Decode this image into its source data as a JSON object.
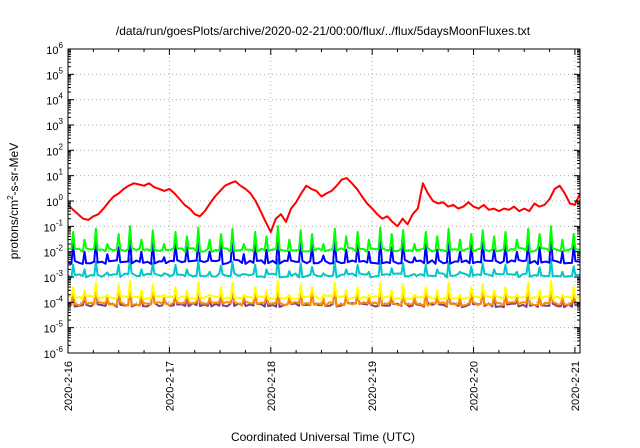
{
  "chart_data": {
    "type": "line",
    "title": "/data/run/goesPlots/archive/2020-02-21/00:00/flux/../flux/5daysMoonFluxes.txt",
    "xlabel": "Coordinated Universal Time (UTC)",
    "ylabel_parts": {
      "pre": "protons/cm",
      "sup": "2",
      "post": "-s-sr-MeV"
    },
    "yscale": "log",
    "ylim": [
      1e-06,
      1000000.0
    ],
    "y_ticks": [
      {
        "base": "10",
        "exp": "-6"
      },
      {
        "base": "10",
        "exp": "-5"
      },
      {
        "base": "10",
        "exp": "-4"
      },
      {
        "base": "10",
        "exp": "-3"
      },
      {
        "base": "10",
        "exp": "-2"
      },
      {
        "base": "10",
        "exp": "-1"
      },
      {
        "base": "10",
        "exp": "0"
      },
      {
        "base": "10",
        "exp": "1"
      },
      {
        "base": "10",
        "exp": "2"
      },
      {
        "base": "10",
        "exp": "3"
      },
      {
        "base": "10",
        "exp": "4"
      },
      {
        "base": "10",
        "exp": "5"
      },
      {
        "base": "10",
        "exp": "6"
      }
    ],
    "x_ticks": [
      "2020-2-16",
      "2020-2-17",
      "2020-2-18",
      "2020-2-19",
      "2020-2-20",
      "2020-2-21"
    ],
    "xlim_days": [
      0,
      5.05
    ],
    "grid": true,
    "series": [
      {
        "color": "#ff0000",
        "x": [
          0.0,
          0.05,
          0.1,
          0.15,
          0.2,
          0.25,
          0.3,
          0.35,
          0.4,
          0.45,
          0.5,
          0.55,
          0.6,
          0.65,
          0.7,
          0.75,
          0.8,
          0.85,
          0.9,
          0.95,
          1.0,
          1.05,
          1.1,
          1.15,
          1.2,
          1.25,
          1.3,
          1.35,
          1.4,
          1.45,
          1.5,
          1.55,
          1.6,
          1.65,
          1.7,
          1.75,
          1.8,
          1.85,
          1.9,
          1.95,
          2.0,
          2.05,
          2.1,
          2.15,
          2.2,
          2.25,
          2.3,
          2.35,
          2.4,
          2.45,
          2.5,
          2.55,
          2.6,
          2.65,
          2.7,
          2.75,
          2.8,
          2.85,
          2.9,
          2.95,
          3.0,
          3.05,
          3.1,
          3.15,
          3.2,
          3.25,
          3.3,
          3.35,
          3.4,
          3.45,
          3.5,
          3.55,
          3.6,
          3.65,
          3.7,
          3.75,
          3.8,
          3.85,
          3.9,
          3.95,
          4.0,
          4.05,
          4.1,
          4.15,
          4.2,
          4.25,
          4.3,
          4.35,
          4.4,
          4.45,
          4.5,
          4.55,
          4.6,
          4.65,
          4.7,
          4.75,
          4.8,
          4.85,
          4.9,
          4.95,
          5.0,
          5.05
        ],
        "values": [
          0.7,
          0.45,
          0.3,
          0.2,
          0.18,
          0.25,
          0.3,
          0.5,
          0.9,
          1.5,
          2.0,
          3.0,
          4.0,
          5.0,
          4.5,
          4.0,
          5.0,
          3.5,
          3.0,
          2.5,
          3.0,
          2.0,
          1.2,
          0.7,
          0.5,
          0.3,
          0.25,
          0.4,
          0.8,
          1.5,
          2.5,
          4.0,
          5.0,
          6.0,
          4.0,
          3.0,
          2.0,
          1.0,
          0.4,
          0.15,
          0.06,
          0.2,
          0.3,
          0.15,
          0.5,
          0.9,
          2.0,
          4.0,
          3.0,
          2.5,
          1.5,
          2.0,
          2.5,
          4.0,
          7.0,
          8.0,
          5.0,
          3.0,
          1.5,
          0.8,
          0.5,
          0.3,
          0.2,
          0.25,
          0.15,
          0.1,
          0.2,
          0.12,
          0.3,
          0.5,
          5.0,
          2.0,
          1.0,
          0.8,
          0.9,
          0.6,
          0.7,
          0.5,
          0.6,
          0.9,
          0.6,
          0.5,
          0.7,
          0.45,
          0.5,
          0.4,
          0.5,
          0.45,
          0.6,
          0.4,
          0.5,
          0.4,
          0.8,
          0.6,
          0.7,
          1.2,
          3.0,
          4.0,
          2.0,
          0.8,
          0.7,
          2.0
        ]
      },
      {
        "color": "#00ff00",
        "baseline": 0.012,
        "spikes": [
          0.06,
          0.03,
          0.08,
          0.02,
          0.05,
          0.1,
          0.03,
          0.07,
          0.02,
          0.06,
          0.04,
          0.09,
          0.03,
          0.05,
          0.08,
          0.02,
          0.06,
          0.04,
          0.1,
          0.03,
          0.07,
          0.05,
          0.02,
          0.08,
          0.04,
          0.06,
          0.03,
          0.09,
          0.05,
          0.07,
          0.02,
          0.06,
          0.04,
          0.08,
          0.03,
          0.05,
          0.07,
          0.04,
          0.06,
          0.03,
          0.08,
          0.05,
          0.1,
          0.03,
          0.05
        ]
      },
      {
        "color": "#0000ff",
        "baseline": 0.004,
        "spikes": [
          0.02,
          0.01,
          0.03,
          0.008,
          0.015,
          0.04,
          0.01,
          0.025,
          0.006,
          0.02,
          0.015,
          0.03,
          0.01,
          0.02,
          0.035,
          0.008,
          0.02,
          0.012,
          0.04,
          0.01,
          0.025,
          0.018,
          0.007,
          0.03,
          0.012,
          0.02,
          0.01,
          0.035,
          0.015,
          0.025,
          0.006,
          0.02,
          0.012,
          0.03,
          0.01,
          0.018,
          0.025,
          0.012,
          0.02,
          0.01,
          0.03,
          0.015,
          0.04,
          0.01,
          0.018
        ]
      },
      {
        "color": "#00c8c8",
        "baseline": 0.0012,
        "spikes": [
          0.003,
          0.002,
          0.004,
          0.0015,
          0.003,
          0.005,
          0.002,
          0.0035,
          0.0014,
          0.003,
          0.002,
          0.0045,
          0.0016,
          0.0028,
          0.004,
          0.0013,
          0.003,
          0.002,
          0.005,
          0.0017,
          0.0035,
          0.0025,
          0.0014,
          0.004,
          0.002,
          0.003,
          0.0016,
          0.0045,
          0.0022,
          0.0035,
          0.0013,
          0.003,
          0.002,
          0.004,
          0.0016,
          0.0026,
          0.0035,
          0.002,
          0.003,
          0.0016,
          0.004,
          0.0024,
          0.005,
          0.0016,
          0.0026
        ]
      },
      {
        "color": "#ffff00",
        "baseline": 0.00016,
        "spikes": [
          0.0004,
          0.0003,
          0.0006,
          0.0002,
          0.0005,
          0.0007,
          0.0003,
          0.0005,
          0.0002,
          0.0004,
          0.0003,
          0.0006,
          0.0002,
          0.0004,
          0.0006,
          0.0002,
          0.0004,
          0.0003,
          0.0007,
          0.0002,
          0.0005,
          0.0004,
          0.0002,
          0.0006,
          0.0003,
          0.0004,
          0.0002,
          0.0006,
          0.0003,
          0.0005,
          0.0002,
          0.0004,
          0.0003,
          0.0006,
          0.0002,
          0.0004,
          0.0005,
          0.0003,
          0.0004,
          0.0002,
          0.0006,
          0.0003,
          0.0007,
          0.0002,
          0.0004
        ]
      },
      {
        "color": "#ff8c00",
        "baseline": 9e-05,
        "spikes": [
          0.0003,
          0.0002,
          0.0005,
          0.00015,
          0.0004,
          0.0006,
          0.0002,
          0.0004,
          0.00015,
          0.0003,
          0.0002,
          0.0005,
          0.00015,
          0.0003,
          0.0005,
          0.00015,
          0.0003,
          0.0002,
          0.0006,
          0.00015,
          0.0004,
          0.0003,
          0.00015,
          0.0005,
          0.0002,
          0.0003,
          0.00015,
          0.0005,
          0.0002,
          0.0004,
          0.00015,
          0.0003,
          0.0002,
          0.0005,
          0.00015,
          0.0003,
          0.0004,
          0.0002,
          0.0003,
          0.00015,
          0.0005,
          0.0002,
          0.0006,
          0.00015,
          0.0003
        ]
      },
      {
        "color": "#7f3f7f",
        "baseline": 8e-05,
        "spikes": [
          0.00025,
          0.00015,
          0.0004,
          0.00012,
          0.0003,
          0.0005,
          0.00015,
          0.00035,
          0.00012,
          0.00025,
          0.00018,
          0.0004,
          0.00012,
          0.00025,
          0.0004,
          0.00012,
          0.00025,
          0.00018,
          0.0005,
          0.00012,
          0.00035,
          0.00025,
          0.00012,
          0.0004,
          0.00018,
          0.00025,
          0.00012,
          0.0004,
          0.00018,
          0.00035,
          0.00012,
          0.00025,
          0.00018,
          0.0004,
          0.00012,
          0.00025,
          0.00035,
          0.00018,
          0.00025,
          0.00012,
          0.0004,
          0.00018,
          0.0005,
          0.00012,
          0.00025
        ]
      }
    ]
  }
}
